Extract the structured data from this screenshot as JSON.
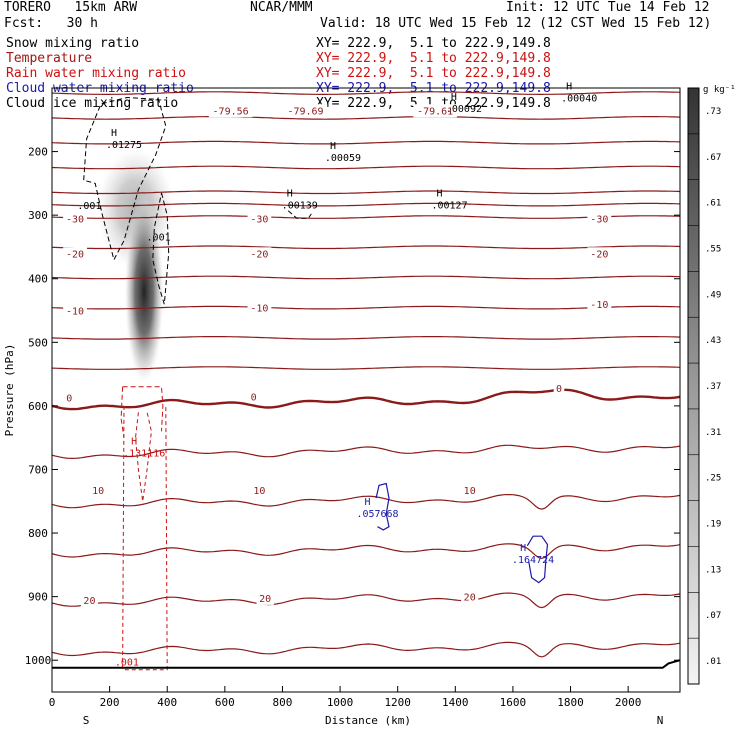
{
  "header": {
    "model": "TORERO   15km ARW",
    "center": "NCAR/MMM",
    "init": "Init: 12 UTC Tue 14 Feb 12",
    "fcst": "Fcst:   30 h",
    "valid": "Valid: 18 UTC Wed 15 Feb 12 (12 CST Wed 15 Feb 12)"
  },
  "legend": [
    {
      "name": "Snow mixing ratio",
      "color": "#000000",
      "xy": "XY= 222.9,  5.1 to 222.9,149.8"
    },
    {
      "name": "Temperature",
      "color": "#a01818",
      "xy": "XY= 222.9,  5.1 to 222.9,149.8"
    },
    {
      "name": "Rain water mixing ratio",
      "color": "#cc1111",
      "xy": "XY= 222.9,  5.1 to 222.9,149.8"
    },
    {
      "name": "Cloud water mixing ratio",
      "color": "#1a1aaa",
      "xy": "XY= 222.9,  5.1 to 222.9,149.8"
    },
    {
      "name": "Cloud ice mixing ratio",
      "color": "#000000",
      "xy": "XY= 222.9,  5.1 to 222.9,149.8"
    }
  ],
  "colorbar": {
    "unit": "g kg⁻¹",
    "ticks": [
      ".01",
      ".07",
      ".13",
      ".19",
      ".25",
      ".31",
      ".37",
      ".43",
      ".49",
      ".55",
      ".61",
      ".67",
      ".73"
    ]
  },
  "chart_data": {
    "type": "cross-section",
    "xlabel": "Distance (km)",
    "ylabel": "Pressure (hPa)",
    "xlim": [
      0,
      2180
    ],
    "ylim": [
      1050,
      100
    ],
    "xticks": [
      0,
      200,
      400,
      600,
      800,
      1000,
      1200,
      1400,
      1600,
      1800,
      2000
    ],
    "yticks": [
      200,
      300,
      400,
      500,
      600,
      700,
      800,
      900,
      1000
    ],
    "x_endpoints": {
      "left": "S",
      "right": "N"
    },
    "temperature_levels": [
      -80,
      -70,
      -60,
      -50,
      -40,
      -35,
      -30,
      -25,
      -20,
      -15,
      -10,
      -5,
      0,
      5,
      10,
      15,
      20,
      25,
      30
    ],
    "temperature_labels": [
      {
        "text": "-79.56",
        "x": 620,
        "p": 135
      },
      {
        "text": "-79.69",
        "x": 880,
        "p": 135
      },
      {
        "text": "-79.61",
        "x": 1330,
        "p": 135
      },
      {
        "text": "-30",
        "x": 80,
        "p": 305
      },
      {
        "text": "-30",
        "x": 720,
        "p": 305
      },
      {
        "text": "-30",
        "x": 1900,
        "p": 305
      },
      {
        "text": "-20",
        "x": 80,
        "p": 360
      },
      {
        "text": "-20",
        "x": 720,
        "p": 360
      },
      {
        "text": "-20",
        "x": 1900,
        "p": 360
      },
      {
        "text": "-10",
        "x": 80,
        "p": 450
      },
      {
        "text": "-10",
        "x": 720,
        "p": 445
      },
      {
        "text": "-10",
        "x": 1900,
        "p": 440
      },
      {
        "text": "0",
        "x": 60,
        "p": 587
      },
      {
        "text": "0",
        "x": 700,
        "p": 585
      },
      {
        "text": "0",
        "x": 1760,
        "p": 572
      },
      {
        "text": "10",
        "x": 160,
        "p": 732
      },
      {
        "text": "10",
        "x": 720,
        "p": 732
      },
      {
        "text": "10",
        "x": 1450,
        "p": 732
      },
      {
        "text": "20",
        "x": 130,
        "p": 905
      },
      {
        "text": "20",
        "x": 740,
        "p": 902
      },
      {
        "text": "20",
        "x": 1450,
        "p": 900
      }
    ],
    "highs": [
      {
        "text": ".01275",
        "x": 250,
        "p": 185,
        "color": "#000000"
      },
      {
        "text": ".00059",
        "x": 1010,
        "p": 205,
        "color": "#000000"
      },
      {
        "text": ".00139",
        "x": 860,
        "p": 280,
        "color": "#000000"
      },
      {
        "text": ".00127",
        "x": 1380,
        "p": 280,
        "color": "#000000"
      },
      {
        "text": ".00092",
        "x": 1430,
        "p": 128,
        "color": "#000000"
      },
      {
        "text": ".00040",
        "x": 1830,
        "p": 112,
        "color": "#000000"
      },
      {
        "text": ".131116",
        "x": 320,
        "p": 670,
        "color": "#cc1111"
      },
      {
        "text": ".057668",
        "x": 1130,
        "p": 765,
        "color": "#1a1aaa"
      },
      {
        "text": ".164724",
        "x": 1670,
        "p": 838,
        "color": "#1a1aaa"
      }
    ],
    "ice_labels": [
      {
        "text": ".001",
        "x": 130,
        "p": 290
      },
      {
        "text": ".001",
        "x": 370,
        "p": 340
      }
    ],
    "rain_labels": [
      {
        "text": ".001",
        "x": 260,
        "p": 1008
      }
    ],
    "snow_max": 0.73,
    "snow_core": {
      "x": 320,
      "p_top": 270,
      "p_bottom": 570
    }
  }
}
